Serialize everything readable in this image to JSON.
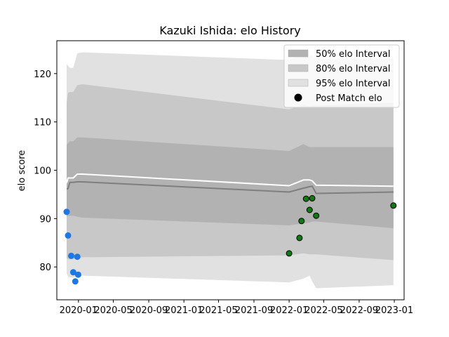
{
  "chart_data": {
    "type": "line",
    "title": "Kazuki Ishida: elo History",
    "xlabel": "",
    "ylabel": "elo score",
    "xlim": [
      "2019-10-18",
      "2023-02-04"
    ],
    "ylim": [
      73.2,
      126.8
    ],
    "xticks": [
      "2020-01",
      "2020-05",
      "2020-09",
      "2021-01",
      "2021-05",
      "2021-09",
      "2022-01",
      "2022-05",
      "2022-09",
      "2023-01"
    ],
    "yticks": [
      80,
      90,
      100,
      110,
      120
    ],
    "grid": false,
    "legend_position": "upper right",
    "legend": [
      {
        "label": "50% elo Interval",
        "kind": "band",
        "color": "#b2b2b2"
      },
      {
        "label": "80% elo Interval",
        "kind": "band",
        "color": "#c8c8c8"
      },
      {
        "label": "95% elo Interval",
        "kind": "band",
        "color": "#e1e1e1"
      },
      {
        "label": "Post Match elo",
        "kind": "marker",
        "color": "#000000"
      }
    ],
    "bands": {
      "x": [
        "2019-11-21",
        "2019-11-26",
        "2019-12-02",
        "2019-12-14",
        "2019-12-28",
        "2020-01-15",
        "2022-01-01",
        "2022-02-20",
        "2022-03-13",
        "2022-03-22",
        "2022-04-05",
        "2022-12-29"
      ],
      "p95_upper": [
        122.0,
        121.6,
        121.2,
        121.2,
        124.2,
        124.4,
        122.8,
        124.2,
        123.6,
        123.8,
        123.0,
        123.0
      ],
      "p95_lower": [
        78.7,
        78.0,
        77.8,
        77.8,
        78.0,
        78.2,
        76.8,
        77.6,
        78.2,
        77.0,
        75.6,
        76.2
      ],
      "p80_upper": [
        114.0,
        116.0,
        116.2,
        116.2,
        117.6,
        117.8,
        112.6,
        113.6,
        113.2,
        113.4,
        113.4,
        114.0
      ],
      "p80_lower": [
        81.8,
        81.6,
        81.6,
        81.6,
        81.8,
        82.0,
        82.4,
        82.8,
        82.6,
        82.6,
        82.6,
        81.4
      ],
      "p50_upper": [
        105.2,
        105.6,
        106.0,
        106.0,
        106.8,
        106.8,
        104.0,
        105.4,
        104.8,
        104.8,
        104.8,
        104.8
      ],
      "p50_lower": [
        90.5,
        90.6,
        90.6,
        90.6,
        90.4,
        90.2,
        88.6,
        89.0,
        89.2,
        89.4,
        89.4,
        88.0
      ]
    },
    "series": [
      {
        "role": "mean",
        "color": "#ffffff",
        "x": [
          "2019-11-21",
          "2019-11-26",
          "2019-12-02",
          "2019-12-14",
          "2019-12-28",
          "2020-01-15",
          "2022-01-01",
          "2022-02-20",
          "2022-03-13",
          "2022-03-22",
          "2022-04-05",
          "2022-12-29"
        ],
        "values": [
          97.4,
          98.4,
          98.4,
          98.4,
          99.2,
          99.2,
          96.8,
          98.0,
          98.0,
          97.8,
          96.9,
          96.7
        ]
      },
      {
        "role": "median",
        "color": "#7f7f7f",
        "x": [
          "2019-11-21",
          "2019-11-26",
          "2019-12-02",
          "2019-12-14",
          "2019-12-28",
          "2020-01-15",
          "2022-01-01",
          "2022-02-20",
          "2022-03-13",
          "2022-03-22",
          "2022-04-05",
          "2022-12-29"
        ],
        "values": [
          96.2,
          96.2,
          97.5,
          97.5,
          97.6,
          97.6,
          95.5,
          96.3,
          96.6,
          96.7,
          95.2,
          95.5
        ]
      },
      {
        "role": "post_match_early",
        "marker": "circle",
        "color": "#1f77e4",
        "x": [
          "2019-11-21",
          "2019-11-26",
          "2019-12-07",
          "2019-12-14",
          "2019-12-21",
          "2019-12-28",
          "2019-12-31"
        ],
        "values": [
          91.4,
          86.5,
          82.3,
          78.9,
          77.0,
          82.1,
          78.4
        ]
      },
      {
        "role": "post_match_recent",
        "marker": "circle",
        "color": "#0f7a0f",
        "x": [
          "2022-01-01",
          "2022-02-06",
          "2022-02-13",
          "2022-03-01",
          "2022-03-13",
          "2022-03-22",
          "2022-04-05",
          "2022-12-29"
        ],
        "values": [
          82.8,
          86.0,
          89.5,
          94.1,
          91.8,
          94.2,
          90.6,
          92.7
        ]
      }
    ]
  }
}
